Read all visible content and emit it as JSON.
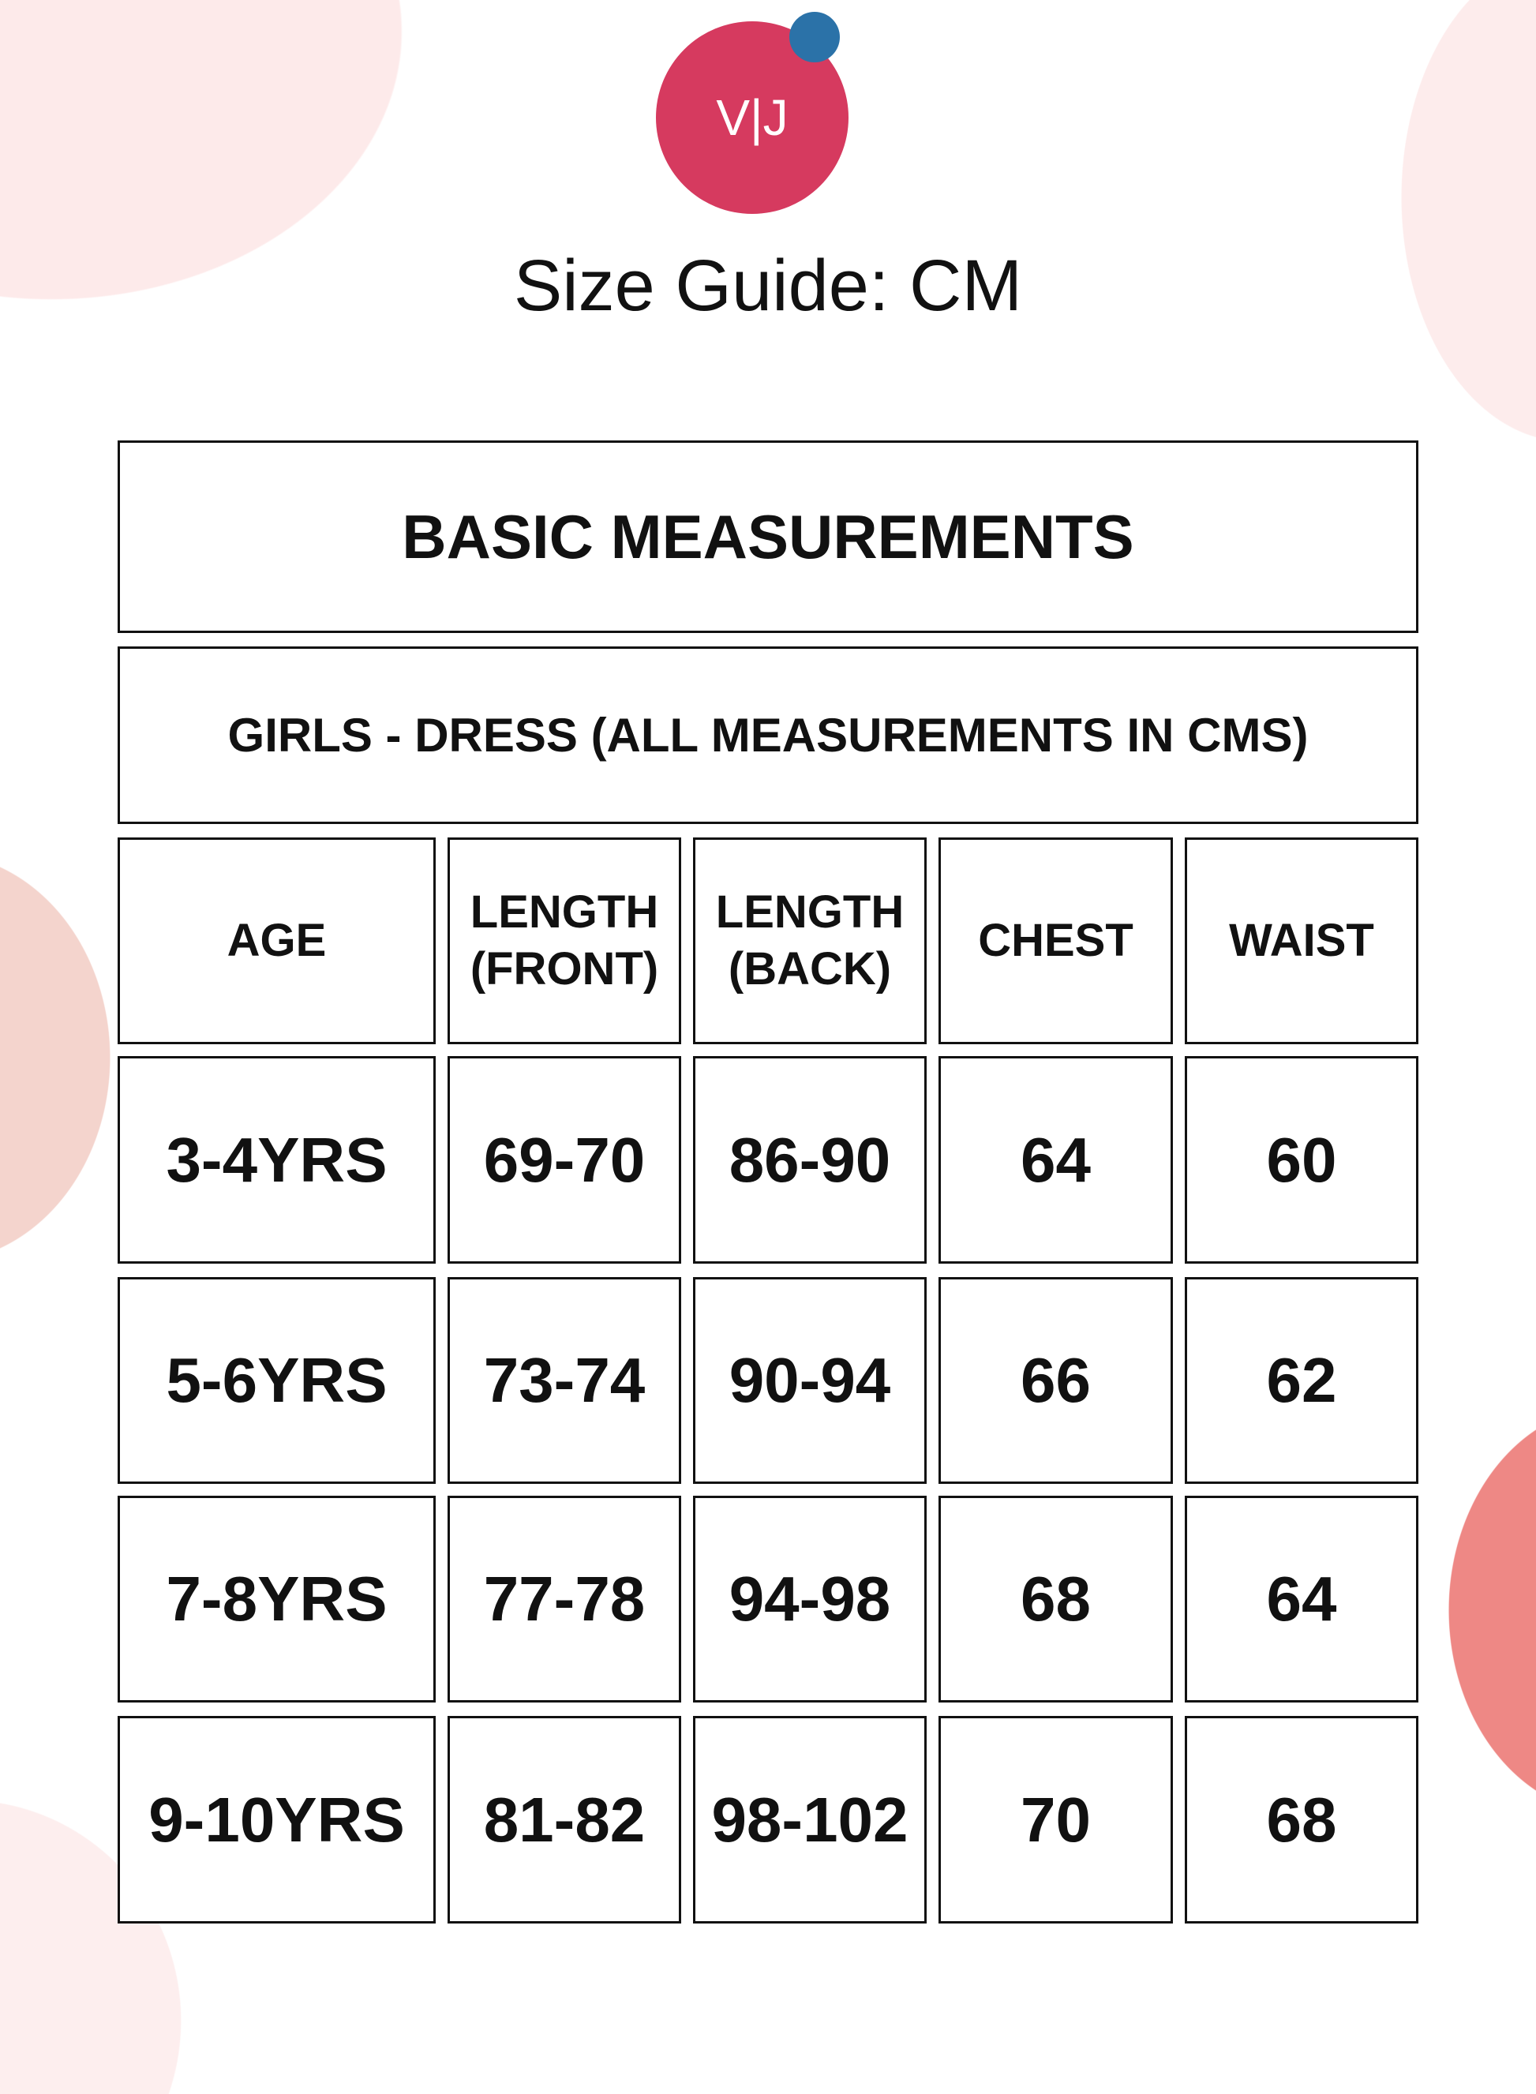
{
  "brand": {
    "logo_text": "V|J",
    "logo_color": "#d63a5f",
    "dot_color": "#2b72a8"
  },
  "title": "Size Guide: CM",
  "table": {
    "heading": "BASIC MEASUREMENTS",
    "subheading": "GIRLS - DRESS (ALL MEASUREMENTS IN CMS)",
    "columns": [
      {
        "line1": "AGE",
        "line2": ""
      },
      {
        "line1": "LENGTH",
        "line2": "(FRONT)"
      },
      {
        "line1": "LENGTH",
        "line2": "(BACK)"
      },
      {
        "line1": "CHEST",
        "line2": ""
      },
      {
        "line1": "WAIST",
        "line2": ""
      }
    ],
    "rows": [
      [
        "3-4YRS",
        "69-70",
        "86-90",
        "64",
        "60"
      ],
      [
        "5-6YRS",
        "73-74",
        "90-94",
        "66",
        "62"
      ],
      [
        "7-8YRS",
        "77-78",
        "94-98",
        "68",
        "64"
      ],
      [
        "9-10YRS",
        "81-82",
        "98-102",
        "70",
        "68"
      ]
    ]
  }
}
